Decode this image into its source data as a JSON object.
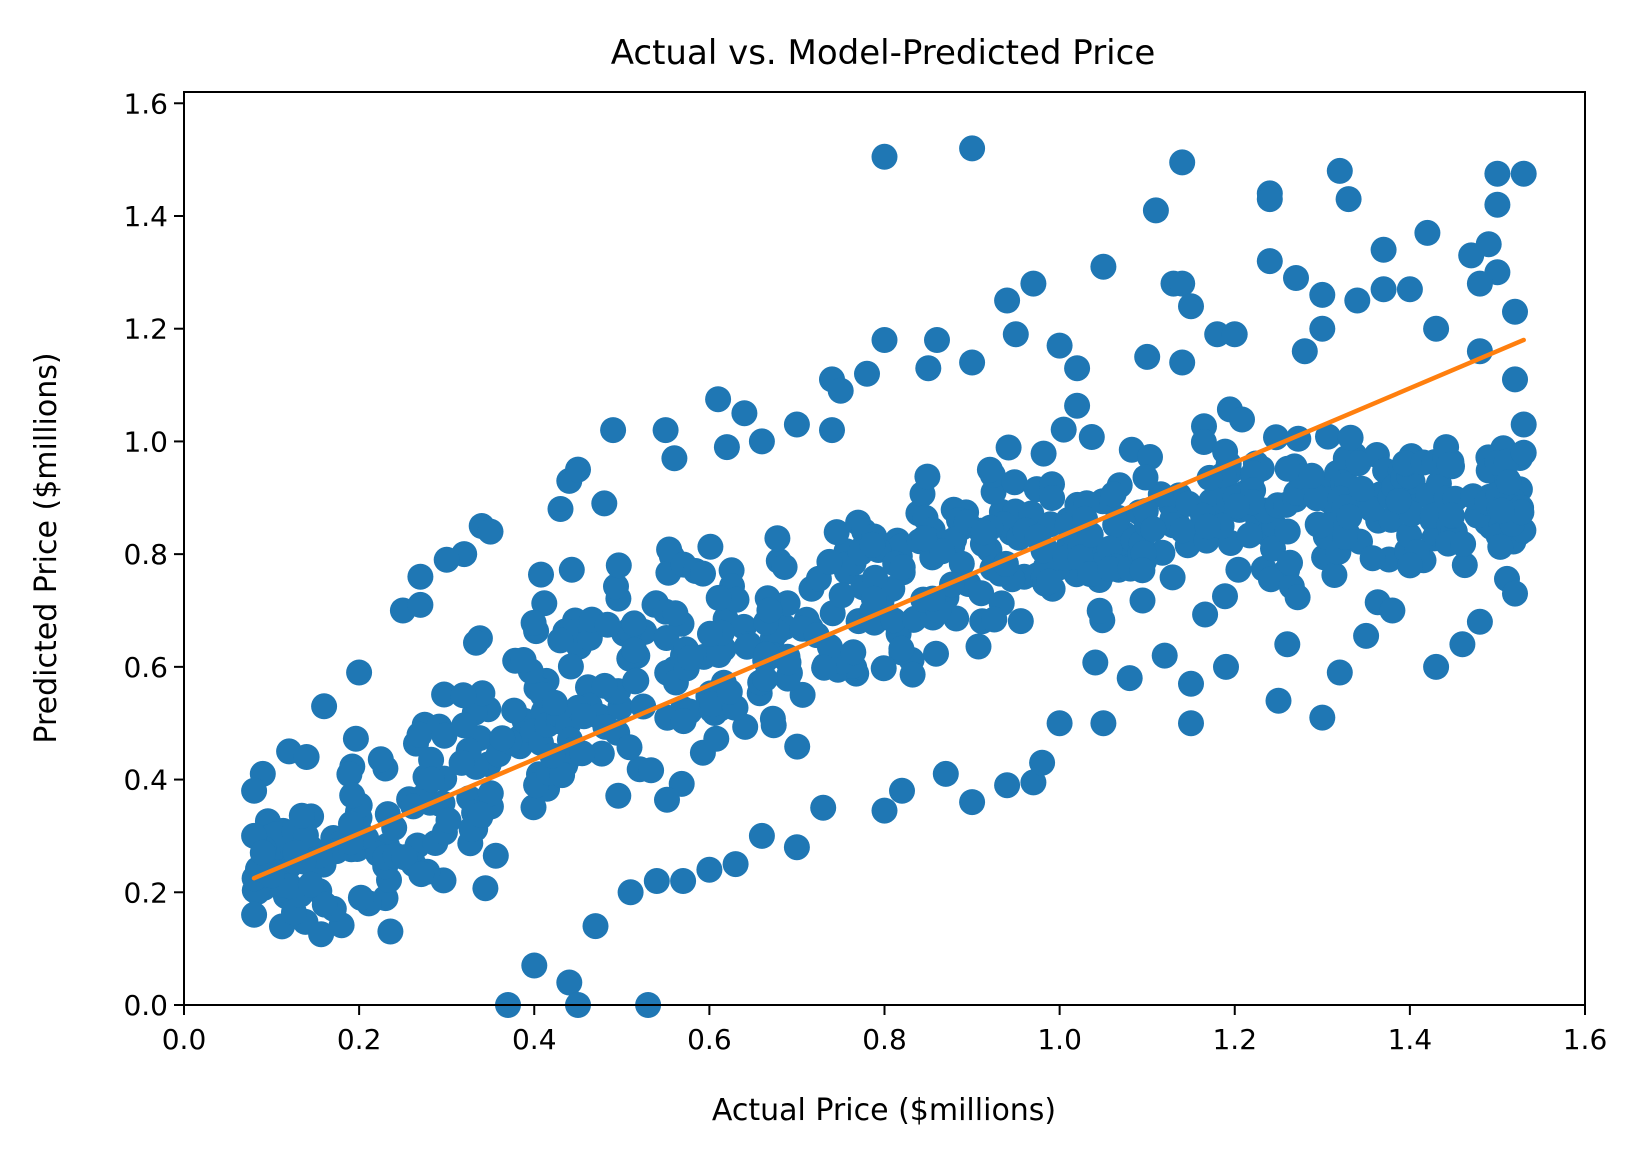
{
  "chart_data": {
    "type": "scatter",
    "title": "Actual vs. Model-Predicted Price",
    "xlabel": "Actual Price ($millions)",
    "ylabel": "Predicted Price ($millions)",
    "xlim": [
      0.0,
      1.6
    ],
    "ylim": [
      0.0,
      1.62
    ],
    "xticks": [
      "0.0",
      "0.2",
      "0.4",
      "0.6",
      "0.8",
      "1.0",
      "1.2",
      "1.4",
      "1.6"
    ],
    "yticks": [
      "0.0",
      "0.2",
      "0.4",
      "0.6",
      "0.8",
      "1.0",
      "1.2",
      "1.4",
      "1.6"
    ],
    "grid": false,
    "colors": {
      "points": "#1f77b4",
      "fit_line": "#ff7f0e"
    },
    "fit_line": {
      "x": [
        0.08,
        1.53
      ],
      "y": [
        0.225,
        1.18
      ]
    },
    "series": [
      {
        "kind": "scatter",
        "cloud": [
          [
            0.08,
            0.08,
            0.39
          ],
          [
            0.12,
            0.05,
            0.42
          ],
          [
            0.18,
            0.03,
            0.52
          ],
          [
            0.24,
            0.06,
            0.62
          ],
          [
            0.3,
            0.08,
            0.7
          ],
          [
            0.36,
            0.14,
            0.76
          ],
          [
            0.42,
            0.2,
            0.82
          ],
          [
            0.48,
            0.25,
            0.86
          ],
          [
            0.54,
            0.3,
            0.9
          ],
          [
            0.6,
            0.32,
            0.93
          ],
          [
            0.66,
            0.36,
            0.96
          ],
          [
            0.72,
            0.4,
            0.98
          ],
          [
            0.78,
            0.45,
            1.0
          ],
          [
            0.84,
            0.5,
            1.03
          ],
          [
            0.9,
            0.52,
            1.06
          ],
          [
            0.96,
            0.55,
            1.08
          ],
          [
            1.02,
            0.58,
            1.1
          ],
          [
            1.08,
            0.6,
            1.11
          ],
          [
            1.14,
            0.62,
            1.11
          ],
          [
            1.2,
            0.63,
            1.11
          ],
          [
            1.26,
            0.65,
            1.1
          ],
          [
            1.32,
            0.67,
            1.09
          ],
          [
            1.38,
            0.69,
            1.07
          ],
          [
            1.44,
            0.7,
            1.06
          ],
          [
            1.5,
            0.73,
            1.05
          ],
          [
            1.53,
            0.74,
            1.03
          ]
        ],
        "x": [
          0.8,
          0.9,
          1.14,
          1.11,
          1.24,
          1.24,
          1.32,
          1.33,
          1.5,
          1.53,
          1.5,
          1.42,
          1.37,
          1.49,
          1.47,
          1.5,
          1.48,
          1.52,
          1.24,
          1.05,
          0.97,
          0.94,
          1.13,
          1.14,
          1.15,
          1.18,
          1.27,
          1.3,
          0.8,
          0.74,
          0.75,
          0.61,
          0.64,
          0.49,
          0.55,
          0.56,
          0.44,
          0.45,
          0.43,
          0.48,
          0.34,
          0.35,
          0.32,
          0.3,
          0.27,
          0.25,
          0.27,
          0.2,
          0.16,
          0.12,
          0.14,
          0.09,
          0.08,
          0.08,
          0.09,
          0.1,
          0.08,
          0.44,
          0.45,
          0.53,
          0.4,
          0.37,
          0.47,
          0.51,
          0.54,
          0.57,
          0.6,
          0.63,
          0.66,
          0.7,
          0.73,
          0.8,
          0.82,
          0.87,
          0.9,
          0.94,
          0.97,
          0.98,
          1.0,
          1.05,
          1.08,
          1.12,
          1.15,
          1.15,
          1.19,
          1.25,
          1.26,
          1.3,
          1.32,
          1.35,
          1.38,
          1.43,
          1.46,
          1.48,
          1.52,
          1.53,
          1.53,
          1.52,
          1.48,
          1.4,
          1.43,
          1.37,
          1.34,
          1.3,
          1.28,
          1.2,
          1.14,
          1.1,
          1.02,
          1.0,
          0.95,
          0.9,
          0.85,
          0.86,
          0.78,
          0.74,
          0.7,
          0.66,
          0.62
        ],
        "y": [
          1.505,
          1.52,
          1.495,
          1.41,
          1.44,
          1.43,
          1.48,
          1.43,
          1.475,
          1.475,
          1.42,
          1.37,
          1.34,
          1.35,
          1.33,
          1.3,
          1.28,
          1.23,
          1.32,
          1.31,
          1.28,
          1.25,
          1.28,
          1.28,
          1.24,
          1.19,
          1.29,
          1.26,
          1.18,
          1.11,
          1.09,
          1.075,
          1.05,
          1.02,
          1.02,
          0.97,
          0.93,
          0.95,
          0.88,
          0.89,
          0.85,
          0.84,
          0.8,
          0.79,
          0.76,
          0.7,
          0.71,
          0.59,
          0.53,
          0.45,
          0.44,
          0.41,
          0.38,
          0.3,
          0.27,
          0.23,
          0.16,
          0.04,
          0.0,
          0.0,
          0.07,
          0.0,
          0.14,
          0.2,
          0.22,
          0.22,
          0.24,
          0.25,
          0.3,
          0.28,
          0.35,
          0.345,
          0.38,
          0.41,
          0.36,
          0.39,
          0.395,
          0.43,
          0.5,
          0.5,
          0.58,
          0.62,
          0.57,
          0.5,
          0.6,
          0.54,
          0.64,
          0.51,
          0.59,
          0.655,
          0.7,
          0.6,
          0.64,
          0.68,
          0.73,
          0.98,
          1.03,
          1.11,
          1.16,
          1.27,
          1.2,
          1.27,
          1.25,
          1.2,
          1.16,
          1.19,
          1.14,
          1.15,
          1.13,
          1.17,
          1.19,
          1.14,
          1.13,
          1.18,
          1.12,
          1.02,
          1.03,
          1.0,
          0.99
        ]
      }
    ]
  }
}
